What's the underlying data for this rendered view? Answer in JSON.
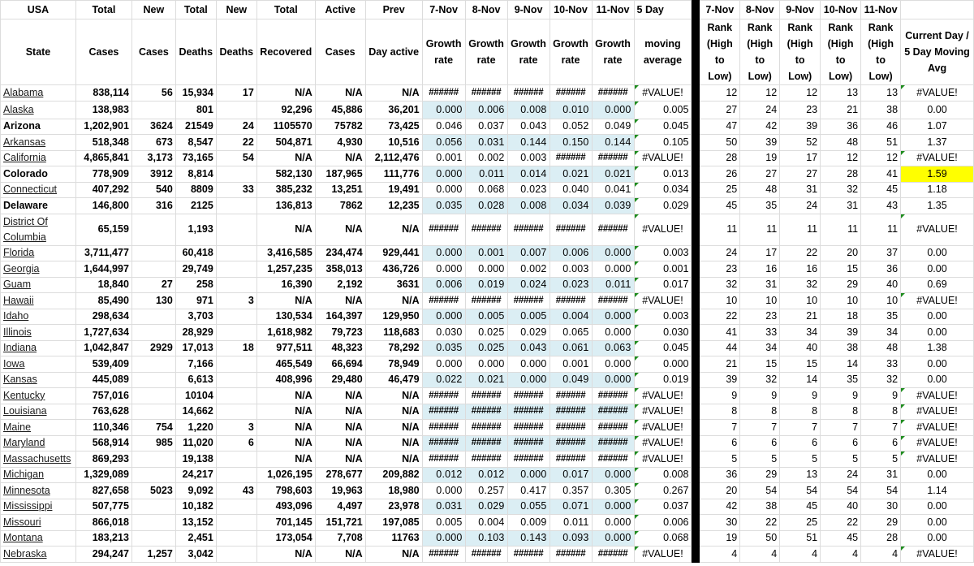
{
  "header_row1": [
    "USA",
    "Total",
    "New",
    "Total",
    "New",
    "Total",
    "Active",
    "Prev",
    "7-Nov",
    "8-Nov",
    "9-Nov",
    "10-Nov",
    "11-Nov",
    "5 Day",
    "",
    "7-Nov",
    "8-Nov",
    "9-Nov",
    "10-Nov",
    "11-Nov",
    ""
  ],
  "header_row2": [
    "State",
    "Cases",
    "Cases",
    "Deaths",
    "Deaths",
    "Recovered",
    "Cases",
    "Day active",
    "Growth rate",
    "Growth rate",
    "Growth rate",
    "Growth rate",
    "Growth rate",
    "moving average",
    "",
    "Rank (High to Low)",
    "Rank (High to Low)",
    "Rank (High to Low)",
    "Rank (High to Low)",
    "Rank (High to Low)",
    "Current Day / 5 Day Moving Avg"
  ],
  "colors": {
    "growth_band": "#dbeef4",
    "highlight": "#ffff00",
    "divider": "#000000",
    "error_flag": "#1e8c1e"
  },
  "rows": [
    {
      "state": "Alabama",
      "link": true,
      "total_cases": "838,114",
      "new_cases": "56",
      "total_deaths": "15,934",
      "new_deaths": "17",
      "recovered": "N/A",
      "active": "N/A",
      "prev_active": "N/A",
      "growth": [
        "######",
        "######",
        "######",
        "######",
        "######"
      ],
      "ma": "#VALUE!",
      "ranks": [
        "12",
        "12",
        "12",
        "13",
        "13"
      ],
      "ratio": "#VALUE!",
      "band": false
    },
    {
      "state": "Alaska",
      "link": true,
      "total_cases": "138,983",
      "new_cases": "",
      "total_deaths": "801",
      "new_deaths": "",
      "recovered": "92,296",
      "active": "45,886",
      "prev_active": "36,201",
      "growth": [
        "0.000",
        "0.006",
        "0.008",
        "0.010",
        "0.000"
      ],
      "ma": "0.005",
      "ranks": [
        "27",
        "24",
        "23",
        "21",
        "38"
      ],
      "ratio": "0.00",
      "band": true
    },
    {
      "state": "Arizona",
      "link": false,
      "total_cases": "1,202,901",
      "new_cases": "3624",
      "total_deaths": "21549",
      "new_deaths": "24",
      "recovered": "1105570",
      "active": "75782",
      "prev_active": "73,425",
      "growth": [
        "0.046",
        "0.037",
        "0.043",
        "0.052",
        "0.049"
      ],
      "ma": "0.045",
      "ranks": [
        "47",
        "42",
        "39",
        "36",
        "46"
      ],
      "ratio": "1.07",
      "band": false
    },
    {
      "state": "Arkansas",
      "link": true,
      "total_cases": "518,348",
      "new_cases": "673",
      "total_deaths": "8,547",
      "new_deaths": "22",
      "recovered": "504,871",
      "active": "4,930",
      "prev_active": "10,516",
      "growth": [
        "0.056",
        "0.031",
        "0.144",
        "0.150",
        "0.144"
      ],
      "ma": "0.105",
      "ranks": [
        "50",
        "39",
        "52",
        "48",
        "51"
      ],
      "ratio": "1.37",
      "band": true
    },
    {
      "state": "California",
      "link": true,
      "total_cases": "4,865,841",
      "new_cases": "3,173",
      "total_deaths": "73,165",
      "new_deaths": "54",
      "recovered": "N/A",
      "active": "N/A",
      "prev_active": "2,112,476",
      "growth": [
        "0.001",
        "0.002",
        "0.003",
        "######",
        "######"
      ],
      "ma": "#VALUE!",
      "ranks": [
        "28",
        "19",
        "17",
        "12",
        "12"
      ],
      "ratio": "#VALUE!",
      "band": false
    },
    {
      "state": "Colorado",
      "link": false,
      "total_cases": "778,909",
      "new_cases": "3912",
      "total_deaths": "8,814",
      "new_deaths": "",
      "recovered": "582,130",
      "active": "187,965",
      "prev_active": "111,776",
      "growth": [
        "0.000",
        "0.011",
        "0.014",
        "0.021",
        "0.021"
      ],
      "ma": "0.013",
      "ranks": [
        "26",
        "27",
        "27",
        "28",
        "41"
      ],
      "ratio": "1.59",
      "band": true,
      "highlight": true
    },
    {
      "state": "Connecticut",
      "link": true,
      "total_cases": "407,292",
      "new_cases": "540",
      "total_deaths": "8809",
      "new_deaths": "33",
      "recovered": "385,232",
      "active": "13,251",
      "prev_active": "19,491",
      "growth": [
        "0.000",
        "0.068",
        "0.023",
        "0.040",
        "0.041"
      ],
      "ma": "0.034",
      "ranks": [
        "25",
        "48",
        "31",
        "32",
        "45"
      ],
      "ratio": "1.18",
      "band": false
    },
    {
      "state": "Delaware",
      "link": false,
      "total_cases": "146,800",
      "new_cases": "316",
      "total_deaths": "2125",
      "new_deaths": "",
      "recovered": "136,813",
      "active": "7862",
      "prev_active": "12,235",
      "growth": [
        "0.035",
        "0.028",
        "0.008",
        "0.034",
        "0.039"
      ],
      "ma": "0.029",
      "ranks": [
        "45",
        "35",
        "24",
        "31",
        "43"
      ],
      "ratio": "1.35",
      "band": true
    },
    {
      "state": "District Of Columbia",
      "link": true,
      "total_cases": "65,159",
      "new_cases": "",
      "total_deaths": "1,193",
      "new_deaths": "",
      "recovered": "N/A",
      "active": "N/A",
      "prev_active": "N/A",
      "growth": [
        "######",
        "######",
        "######",
        "######",
        "######"
      ],
      "ma": "#VALUE!",
      "ranks": [
        "11",
        "11",
        "11",
        "11",
        "11"
      ],
      "ratio": "#VALUE!",
      "band": false,
      "double": true
    },
    {
      "state": "Florida",
      "link": true,
      "total_cases": "3,711,477",
      "new_cases": "",
      "total_deaths": "60,418",
      "new_deaths": "",
      "recovered": "3,416,585",
      "active": "234,474",
      "prev_active": "929,441",
      "growth": [
        "0.000",
        "0.001",
        "0.007",
        "0.006",
        "0.000"
      ],
      "ma": "0.003",
      "ranks": [
        "24",
        "17",
        "22",
        "20",
        "37"
      ],
      "ratio": "0.00",
      "band": true
    },
    {
      "state": "Georgia",
      "link": true,
      "total_cases": "1,644,997",
      "new_cases": "",
      "total_deaths": "29,749",
      "new_deaths": "",
      "recovered": "1,257,235",
      "active": "358,013",
      "prev_active": "436,726",
      "growth": [
        "0.000",
        "0.000",
        "0.002",
        "0.003",
        "0.000"
      ],
      "ma": "0.001",
      "ranks": [
        "23",
        "16",
        "16",
        "15",
        "36"
      ],
      "ratio": "0.00",
      "band": false
    },
    {
      "state": "Guam",
      "link": true,
      "total_cases": "18,840",
      "new_cases": "27",
      "total_deaths": "258",
      "new_deaths": "",
      "recovered": "16,390",
      "active": "2,192",
      "prev_active": "3631",
      "growth": [
        "0.006",
        "0.019",
        "0.024",
        "0.023",
        "0.011"
      ],
      "ma": "0.017",
      "ranks": [
        "32",
        "31",
        "32",
        "29",
        "40"
      ],
      "ratio": "0.69",
      "band": true
    },
    {
      "state": "Hawaii",
      "link": true,
      "total_cases": "85,490",
      "new_cases": "130",
      "total_deaths": "971",
      "new_deaths": "3",
      "recovered": "N/A",
      "active": "N/A",
      "prev_active": "N/A",
      "growth": [
        "######",
        "######",
        "######",
        "######",
        "######"
      ],
      "ma": "#VALUE!",
      "ranks": [
        "10",
        "10",
        "10",
        "10",
        "10"
      ],
      "ratio": "#VALUE!",
      "band": false
    },
    {
      "state": "Idaho",
      "link": true,
      "total_cases": "298,634",
      "new_cases": "",
      "total_deaths": "3,703",
      "new_deaths": "",
      "recovered": "130,534",
      "active": "164,397",
      "prev_active": "129,950",
      "growth": [
        "0.000",
        "0.005",
        "0.005",
        "0.004",
        "0.000"
      ],
      "ma": "0.003",
      "ranks": [
        "22",
        "23",
        "21",
        "18",
        "35"
      ],
      "ratio": "0.00",
      "band": true
    },
    {
      "state": "Illinois",
      "link": true,
      "total_cases": "1,727,634",
      "new_cases": "",
      "total_deaths": "28,929",
      "new_deaths": "",
      "recovered": "1,618,982",
      "active": "79,723",
      "prev_active": "118,683",
      "growth": [
        "0.030",
        "0.025",
        "0.029",
        "0.065",
        "0.000"
      ],
      "ma": "0.030",
      "ranks": [
        "41",
        "33",
        "34",
        "39",
        "34"
      ],
      "ratio": "0.00",
      "band": false
    },
    {
      "state": "Indiana",
      "link": true,
      "total_cases": "1,042,847",
      "new_cases": "2929",
      "total_deaths": "17,013",
      "new_deaths": "18",
      "recovered": "977,511",
      "active": "48,323",
      "prev_active": "78,292",
      "growth": [
        "0.035",
        "0.025",
        "0.043",
        "0.061",
        "0.063"
      ],
      "ma": "0.045",
      "ranks": [
        "44",
        "34",
        "40",
        "38",
        "48"
      ],
      "ratio": "1.38",
      "band": true
    },
    {
      "state": "Iowa",
      "link": true,
      "total_cases": "539,409",
      "new_cases": "",
      "total_deaths": "7,166",
      "new_deaths": "",
      "recovered": "465,549",
      "active": "66,694",
      "prev_active": "78,949",
      "growth": [
        "0.000",
        "0.000",
        "0.000",
        "0.001",
        "0.000"
      ],
      "ma": "0.000",
      "ranks": [
        "21",
        "15",
        "15",
        "14",
        "33"
      ],
      "ratio": "0.00",
      "band": false
    },
    {
      "state": "Kansas",
      "link": true,
      "total_cases": "445,089",
      "new_cases": "",
      "total_deaths": "6,613",
      "new_deaths": "",
      "recovered": "408,996",
      "active": "29,480",
      "prev_active": "46,479",
      "growth": [
        "0.022",
        "0.021",
        "0.000",
        "0.049",
        "0.000"
      ],
      "ma": "0.019",
      "ranks": [
        "39",
        "32",
        "14",
        "35",
        "32"
      ],
      "ratio": "0.00",
      "band": true
    },
    {
      "state": "Kentucky",
      "link": true,
      "total_cases": "757,016",
      "new_cases": "",
      "total_deaths": "10104",
      "new_deaths": "",
      "recovered": "N/A",
      "active": "N/A",
      "prev_active": "N/A",
      "growth": [
        "######",
        "######",
        "######",
        "######",
        "######"
      ],
      "ma": "#VALUE!",
      "ranks": [
        "9",
        "9",
        "9",
        "9",
        "9"
      ],
      "ratio": "#VALUE!",
      "band": false
    },
    {
      "state": "Louisiana",
      "link": true,
      "total_cases": "763,628",
      "new_cases": "",
      "total_deaths": "14,662",
      "new_deaths": "",
      "recovered": "N/A",
      "active": "N/A",
      "prev_active": "N/A",
      "growth": [
        "######",
        "######",
        "######",
        "######",
        "######"
      ],
      "ma": "#VALUE!",
      "ranks": [
        "8",
        "8",
        "8",
        "8",
        "8"
      ],
      "ratio": "#VALUE!",
      "band": true
    },
    {
      "state": "Maine",
      "link": true,
      "total_cases": "110,346",
      "new_cases": "754",
      "total_deaths": "1,220",
      "new_deaths": "3",
      "recovered": "N/A",
      "active": "N/A",
      "prev_active": "N/A",
      "growth": [
        "######",
        "######",
        "######",
        "######",
        "######"
      ],
      "ma": "#VALUE!",
      "ranks": [
        "7",
        "7",
        "7",
        "7",
        "7"
      ],
      "ratio": "#VALUE!",
      "band": false
    },
    {
      "state": "Maryland",
      "link": true,
      "total_cases": "568,914",
      "new_cases": "985",
      "total_deaths": "11,020",
      "new_deaths": "6",
      "recovered": "N/A",
      "active": "N/A",
      "prev_active": "N/A",
      "growth": [
        "######",
        "######",
        "######",
        "######",
        "######"
      ],
      "ma": "#VALUE!",
      "ranks": [
        "6",
        "6",
        "6",
        "6",
        "6"
      ],
      "ratio": "#VALUE!",
      "band": true
    },
    {
      "state": "Massachusetts",
      "link": true,
      "total_cases": "869,293",
      "new_cases": "",
      "total_deaths": "19,138",
      "new_deaths": "",
      "recovered": "N/A",
      "active": "N/A",
      "prev_active": "N/A",
      "growth": [
        "######",
        "######",
        "######",
        "######",
        "######"
      ],
      "ma": "#VALUE!",
      "ranks": [
        "5",
        "5",
        "5",
        "5",
        "5"
      ],
      "ratio": "#VALUE!",
      "band": false
    },
    {
      "state": "Michigan",
      "link": true,
      "total_cases": "1,329,089",
      "new_cases": "",
      "total_deaths": "24,217",
      "new_deaths": "",
      "recovered": "1,026,195",
      "active": "278,677",
      "prev_active": "209,882",
      "growth": [
        "0.012",
        "0.012",
        "0.000",
        "0.017",
        "0.000"
      ],
      "ma": "0.008",
      "ranks": [
        "36",
        "29",
        "13",
        "24",
        "31"
      ],
      "ratio": "0.00",
      "band": true
    },
    {
      "state": "Minnesota",
      "link": true,
      "total_cases": "827,658",
      "new_cases": "5023",
      "total_deaths": "9,092",
      "new_deaths": "43",
      "recovered": "798,603",
      "active": "19,963",
      "prev_active": "18,980",
      "growth": [
        "0.000",
        "0.257",
        "0.417",
        "0.357",
        "0.305"
      ],
      "ma": "0.267",
      "ranks": [
        "20",
        "54",
        "54",
        "54",
        "54"
      ],
      "ratio": "1.14",
      "band": false
    },
    {
      "state": "Mississippi",
      "link": true,
      "total_cases": "507,775",
      "new_cases": "",
      "total_deaths": "10,182",
      "new_deaths": "",
      "recovered": "493,096",
      "active": "4,497",
      "prev_active": "23,978",
      "growth": [
        "0.031",
        "0.029",
        "0.055",
        "0.071",
        "0.000"
      ],
      "ma": "0.037",
      "ranks": [
        "42",
        "38",
        "45",
        "40",
        "30"
      ],
      "ratio": "0.00",
      "band": true
    },
    {
      "state": "Missouri",
      "link": true,
      "total_cases": "866,018",
      "new_cases": "",
      "total_deaths": "13,152",
      "new_deaths": "",
      "recovered": "701,145",
      "active": "151,721",
      "prev_active": "197,085",
      "growth": [
        "0.005",
        "0.004",
        "0.009",
        "0.011",
        "0.000"
      ],
      "ma": "0.006",
      "ranks": [
        "30",
        "22",
        "25",
        "22",
        "29"
      ],
      "ratio": "0.00",
      "band": false
    },
    {
      "state": "Montana",
      "link": true,
      "total_cases": "183,213",
      "new_cases": "",
      "total_deaths": "2,451",
      "new_deaths": "",
      "recovered": "173,054",
      "active": "7,708",
      "prev_active": "11763",
      "growth": [
        "0.000",
        "0.103",
        "0.143",
        "0.093",
        "0.000"
      ],
      "ma": "0.068",
      "ranks": [
        "19",
        "50",
        "51",
        "45",
        "28"
      ],
      "ratio": "0.00",
      "band": true
    },
    {
      "state": "Nebraska",
      "link": true,
      "total_cases": "294,247",
      "new_cases": "1,257",
      "total_deaths": "3,042",
      "new_deaths": "",
      "recovered": "N/A",
      "active": "N/A",
      "prev_active": "N/A",
      "growth": [
        "######",
        "######",
        "######",
        "######",
        "######"
      ],
      "ma": "#VALUE!",
      "ranks": [
        "4",
        "4",
        "4",
        "4",
        "4"
      ],
      "ratio": "#VALUE!",
      "band": false
    }
  ]
}
